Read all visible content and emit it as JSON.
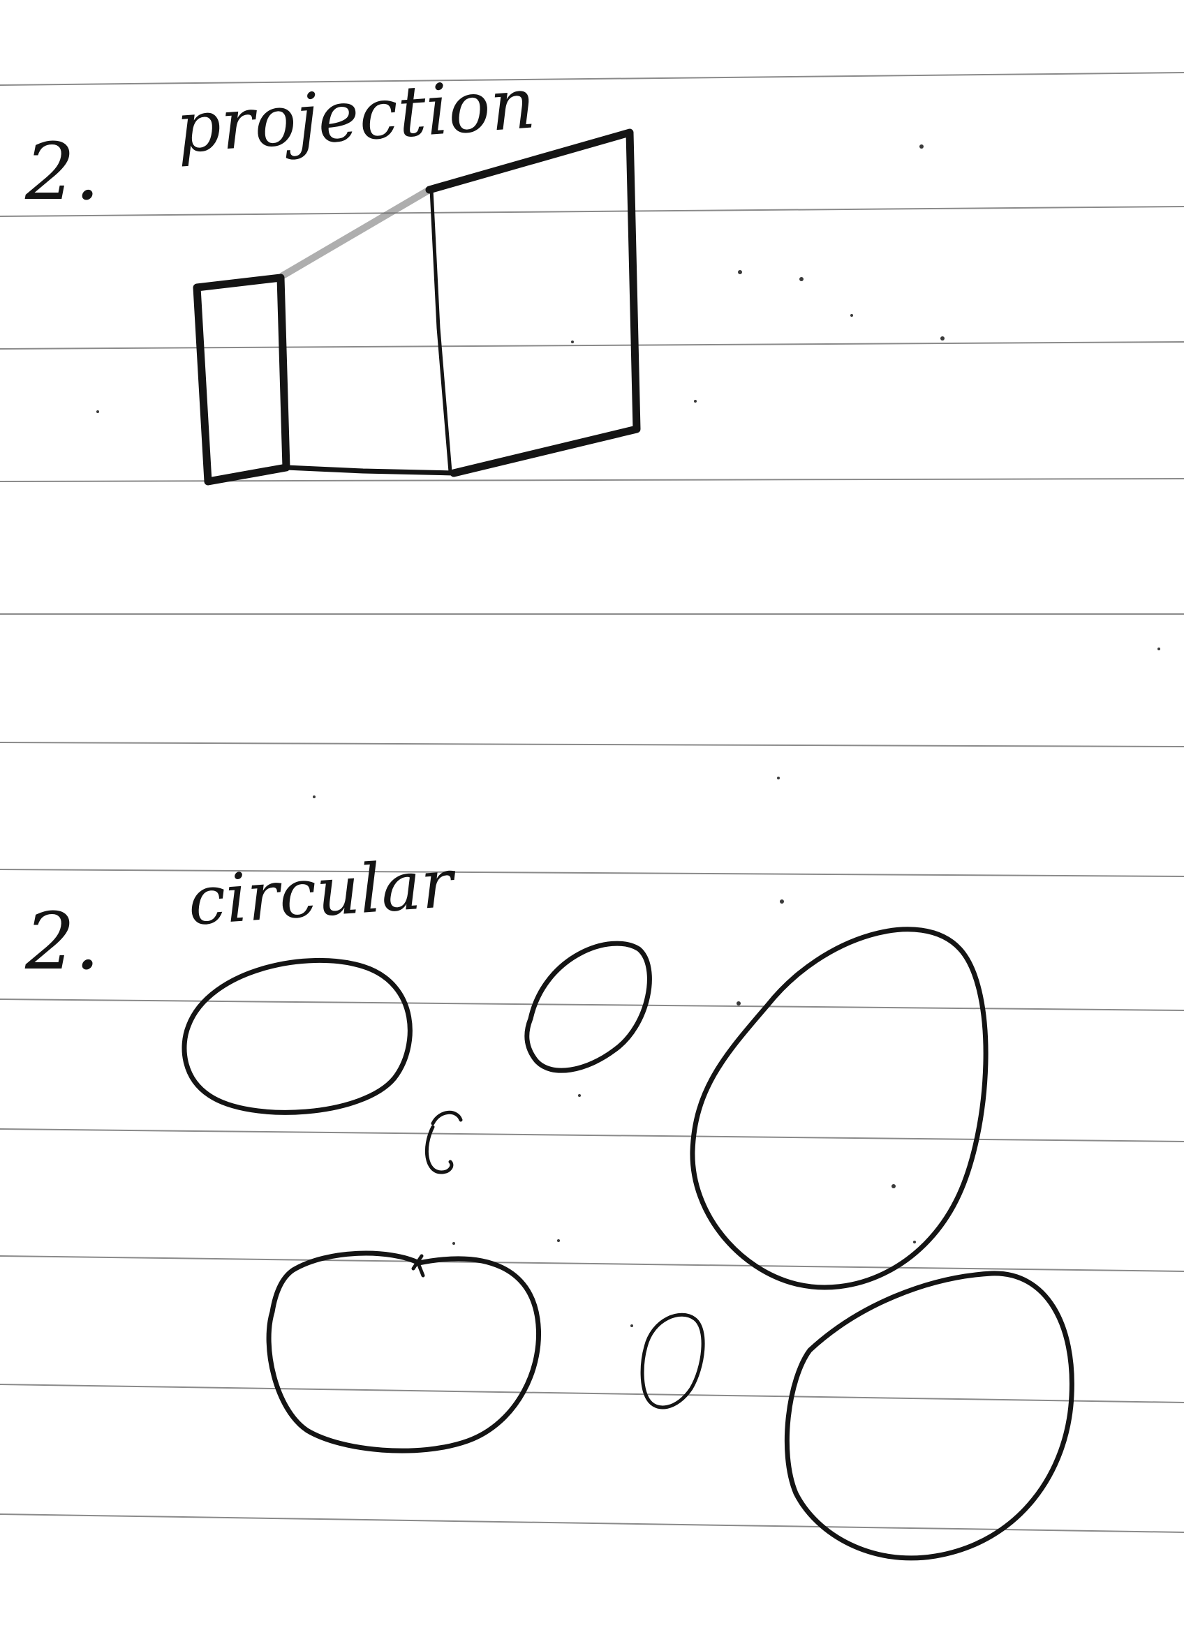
{
  "page": {
    "paper_color": "#ffffff",
    "ink_color": "#141414",
    "rule_color": "#8a8a8a"
  },
  "sections": [
    {
      "number": "2.",
      "heading": "projection",
      "sketch": "box projecting outward from a small rectangle into a larger quadrilateral"
    },
    {
      "number": "2.",
      "heading": "circular",
      "sketch": "seven hand-drawn rounded ovals of varying sizes"
    }
  ]
}
